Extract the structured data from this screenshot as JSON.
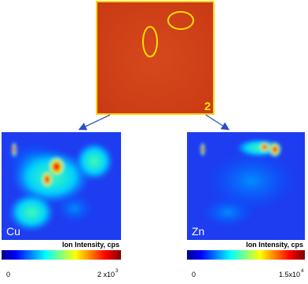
{
  "top_image": {
    "label": "2"
  },
  "maps": [
    {
      "element": "Cu",
      "colorbar": {
        "title": "Ion Intensity, cps",
        "min": "0",
        "max": "2 x10",
        "max_exponent": "3"
      }
    },
    {
      "element": "Zn",
      "colorbar": {
        "title": "Ion Intensity, cps",
        "min": "0",
        "max": "1.5x10",
        "max_exponent": "4"
      }
    }
  ]
}
